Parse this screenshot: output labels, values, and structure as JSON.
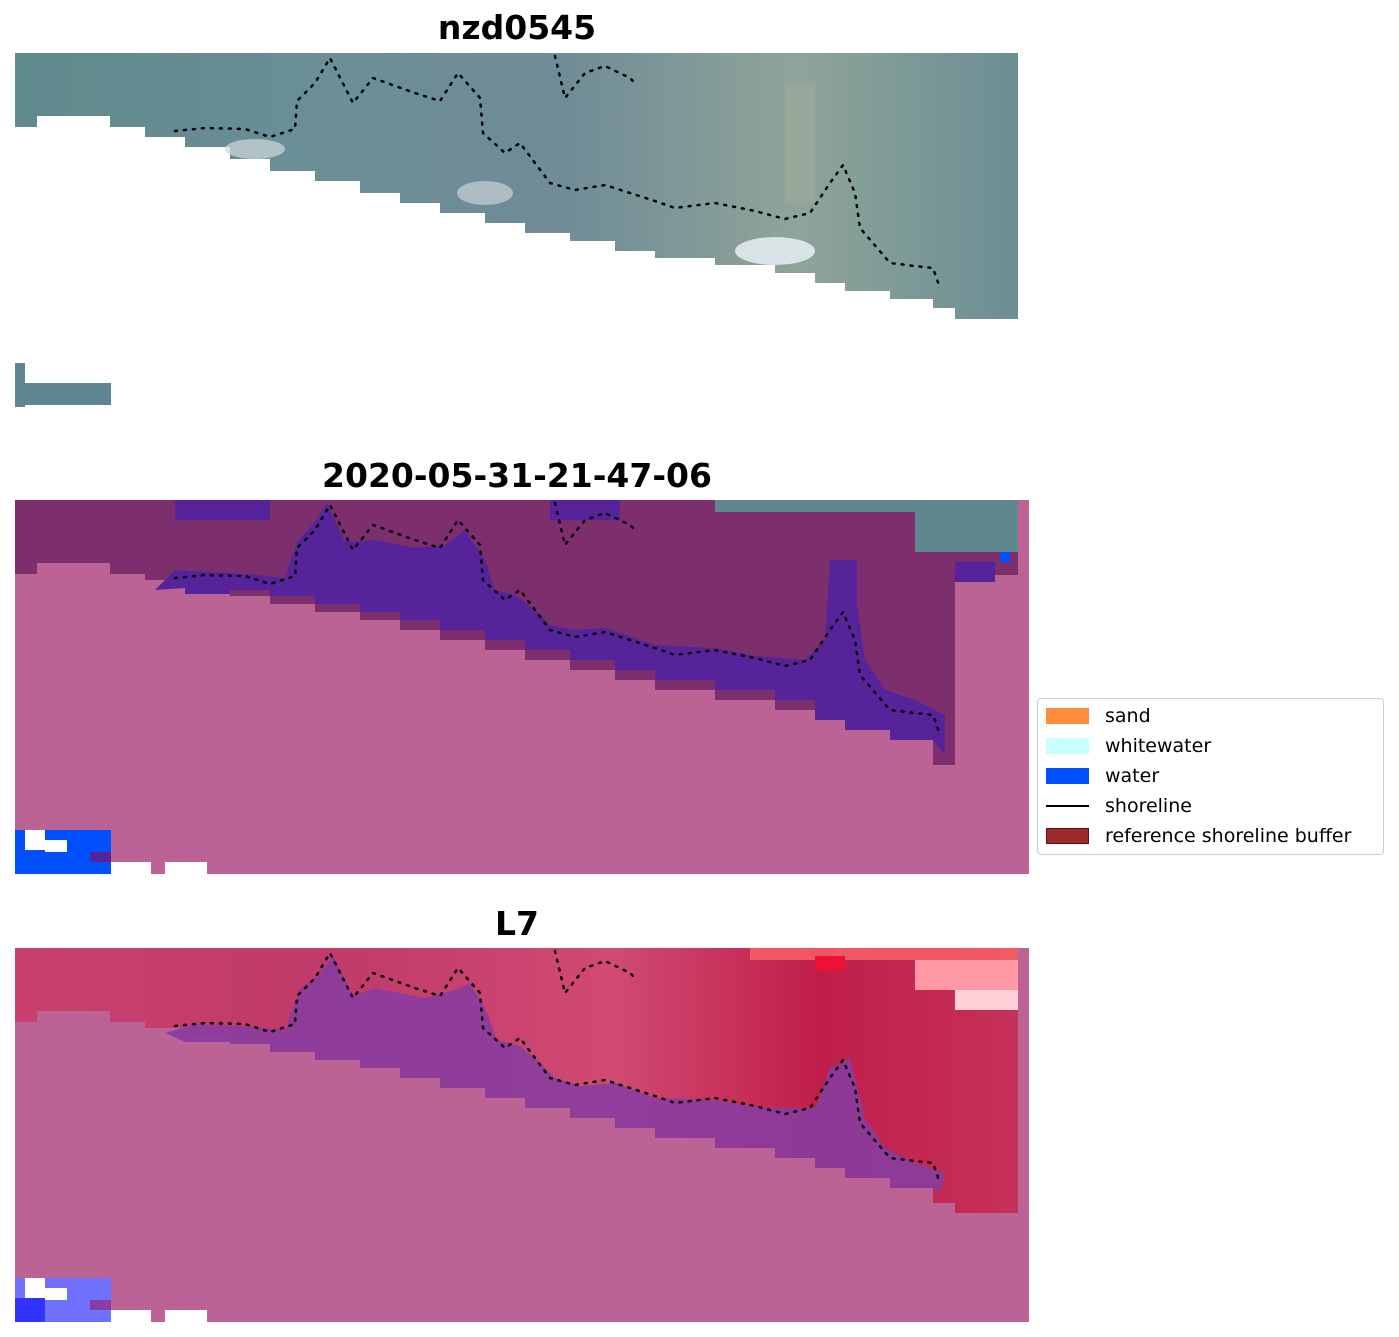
{
  "panels": [
    {
      "title": "nzd0545"
    },
    {
      "title": "2020-05-31-21-47-06"
    },
    {
      "title": "L7"
    }
  ],
  "legend": {
    "items": [
      {
        "label": "sand",
        "color": "#ff8c3c",
        "type": "patch"
      },
      {
        "label": "whitewater",
        "color": "#c8ffff",
        "type": "patch"
      },
      {
        "label": "water",
        "color": "#0050ff",
        "type": "patch"
      },
      {
        "label": "shoreline",
        "color": "#000000",
        "type": "line"
      },
      {
        "label": "reference shoreline buffer",
        "color": "#9b2b2b",
        "type": "patch"
      }
    ]
  }
}
